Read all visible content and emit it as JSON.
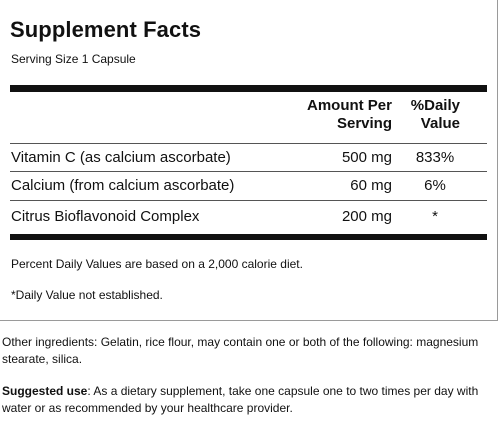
{
  "panel": {
    "title": "Supplement Facts",
    "serving_size": "Serving Size 1 Capsule",
    "header": {
      "amount_line1": "Amount Per",
      "amount_line2": "Serving",
      "dv_line1": "%Daily",
      "dv_line2": "Value"
    },
    "rows": [
      {
        "name": "Vitamin C (as calcium ascorbate)",
        "amount": "500 mg",
        "dv": "833%"
      },
      {
        "name": "Calcium (from calcium ascorbate)",
        "amount": "60 mg",
        "dv": "6%"
      },
      {
        "name": "Citrus Bioflavonoid Complex",
        "amount": "200 mg",
        "dv": "*"
      }
    ],
    "footnote_percent": "Percent Daily Values are based on a 2,000 calorie diet.",
    "footnote_star": "*Daily Value not established."
  },
  "other_ingredients": "Other ingredients: Gelatin, rice flour, may contain one or both of the following: magnesium stearate, silica.",
  "suggested_use": {
    "label": "Suggested use",
    "text": ": As a dietary supplement, take one capsule one to two times per day with water or as recommended by your healthcare provider."
  }
}
